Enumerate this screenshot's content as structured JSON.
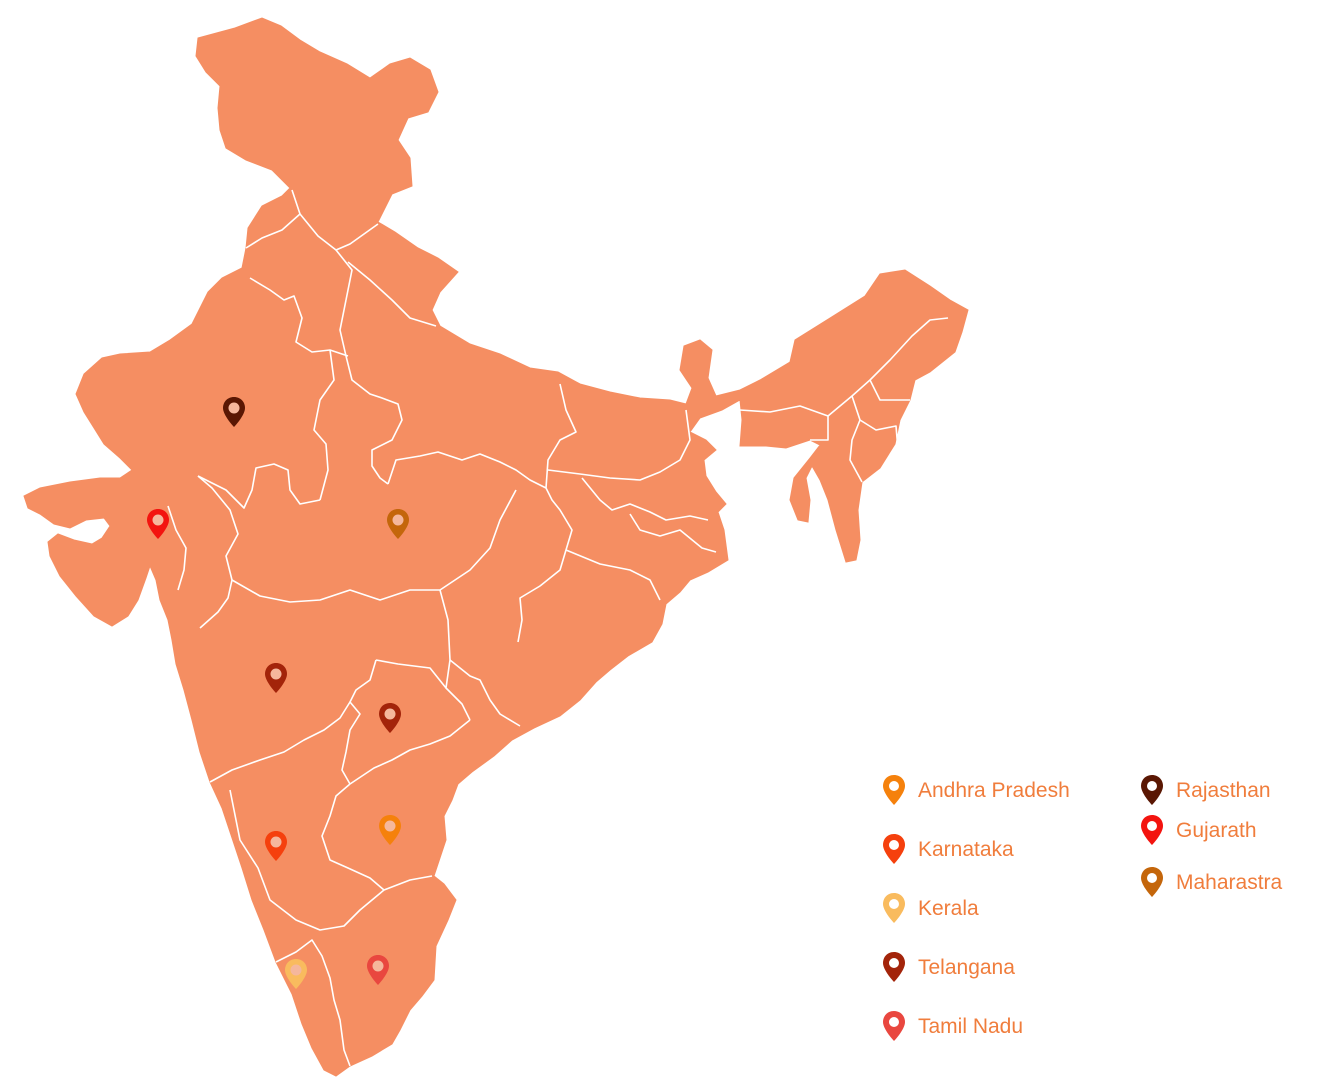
{
  "colors": {
    "land": "#f58e62",
    "border": "#ffffff",
    "legend_text": "#f07d3c"
  },
  "legend": [
    {
      "state": "Andhra Pradesh",
      "color": "#f5810c",
      "icon": "map-pin-icon"
    },
    {
      "state": "Karnataka",
      "color": "#f5400d",
      "icon": "map-pin-icon"
    },
    {
      "state": "Kerala",
      "color": "#f9bb5e",
      "icon": "map-pin-icon"
    },
    {
      "state": "Telangana",
      "color": "#a3240a",
      "icon": "map-pin-icon"
    },
    {
      "state": "Tamil Nadu",
      "color": "#e9473f",
      "icon": "map-pin-icon"
    },
    {
      "state": "Rajasthan",
      "color": "#5a1703",
      "icon": "map-pin-icon"
    },
    {
      "state": "Gujarath",
      "color": "#f3140f",
      "icon": "map-pin-icon"
    },
    {
      "state": "Maharastra",
      "color": "#c4660b",
      "icon": "map-pin-icon"
    }
  ]
}
